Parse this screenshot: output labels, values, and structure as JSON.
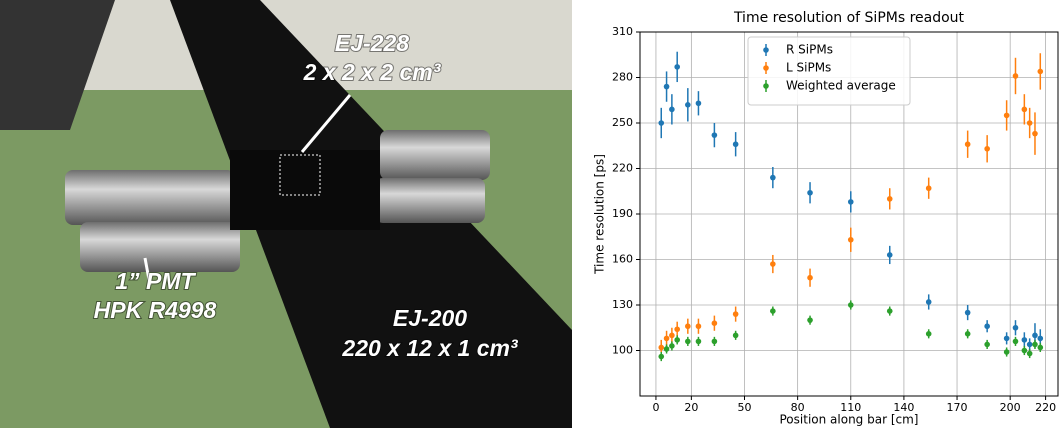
{
  "photo": {
    "labels": [
      "EJ-228",
      "2 x 2 x 2 cm³",
      "1” PMT",
      "HPK R4998",
      "EJ-200",
      "220 x 12 x 1 cm³"
    ]
  },
  "chart_data": {
    "type": "errorbar",
    "title": "Time resolution of SiPMs readout",
    "xlabel": "Position along bar [cm]",
    "ylabel": "Time resolution [ps]",
    "x": [
      3,
      6,
      9,
      12,
      18,
      24,
      33,
      45,
      66,
      87,
      110,
      132,
      154,
      176,
      187,
      198,
      203,
      208,
      211,
      214,
      217
    ],
    "series": [
      {
        "name": "R SiPMs",
        "color": "#1f77b4",
        "values": [
          250,
          274,
          259,
          287,
          262,
          263,
          242,
          236,
          214,
          204,
          198,
          163,
          132,
          125,
          116,
          108,
          115,
          107,
          104,
          110,
          108
        ],
        "errors": [
          10,
          10,
          10,
          10,
          11,
          8,
          8,
          8,
          7,
          7,
          7,
          6,
          5,
          5,
          4,
          4,
          5,
          5,
          4,
          8,
          6
        ]
      },
      {
        "name": "L SiPMs",
        "color": "#ff7f0e",
        "values": [
          102,
          108,
          110,
          114,
          116,
          116,
          118,
          124,
          157,
          148,
          173,
          200,
          207,
          236,
          233,
          255,
          281,
          259,
          250,
          243,
          284
        ],
        "errors": [
          5,
          5,
          5,
          5,
          5,
          5,
          5,
          5,
          6,
          6,
          8,
          7,
          7,
          9,
          9,
          10,
          12,
          10,
          10,
          14,
          12
        ]
      },
      {
        "name": "Weighted average",
        "color": "#2ca02c",
        "values": [
          96,
          101,
          103,
          107,
          106,
          106,
          106,
          110,
          126,
          120,
          130,
          126,
          111,
          111,
          104,
          99,
          106,
          100,
          98,
          104,
          102
        ],
        "errors": [
          3,
          3,
          3,
          3,
          3,
          3,
          3,
          3,
          3,
          3,
          3,
          3,
          3,
          3,
          3,
          3,
          3,
          3,
          3,
          3,
          3
        ]
      }
    ],
    "xlim": [
      -9,
      227
    ],
    "xticks": [
      0,
      20,
      50,
      80,
      110,
      140,
      170,
      200,
      220
    ],
    "ylim": [
      70,
      310
    ],
    "yticks": [
      100,
      130,
      160,
      190,
      220,
      250,
      280,
      310
    ],
    "grid": true,
    "legend": "upper center"
  }
}
